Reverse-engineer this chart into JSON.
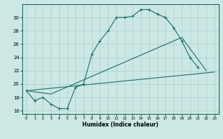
{
  "xlabel": "Humidex (Indice chaleur)",
  "xlim": [
    -0.5,
    23.5
  ],
  "ylim": [
    15.5,
    32.0
  ],
  "yticks": [
    16,
    18,
    20,
    22,
    24,
    26,
    28,
    30
  ],
  "xticks": [
    0,
    1,
    2,
    3,
    4,
    5,
    6,
    7,
    8,
    9,
    10,
    11,
    12,
    13,
    14,
    15,
    16,
    17,
    18,
    19,
    20,
    21,
    22,
    23
  ],
  "bg_color": "#cce8e5",
  "grid_color": "#aaccca",
  "line_color": "#1a6b60",
  "line1_x": [
    0,
    1,
    2,
    3,
    4,
    5,
    6,
    7,
    8,
    9,
    10,
    11,
    12,
    13,
    14,
    15,
    16,
    17,
    18,
    19,
    20,
    21
  ],
  "line1_y": [
    19.0,
    17.5,
    18.0,
    17.0,
    16.3,
    16.3,
    19.5,
    20.0,
    24.5,
    26.5,
    28.0,
    30.0,
    30.0,
    30.2,
    31.2,
    31.2,
    30.5,
    30.0,
    28.5,
    26.5,
    24.0,
    22.5
  ],
  "line2_x": [
    0,
    3,
    19,
    22
  ],
  "line2_y": [
    19.0,
    18.5,
    27.0,
    22.0
  ],
  "line3_x": [
    0,
    23
  ],
  "line3_y": [
    19.0,
    21.8
  ]
}
